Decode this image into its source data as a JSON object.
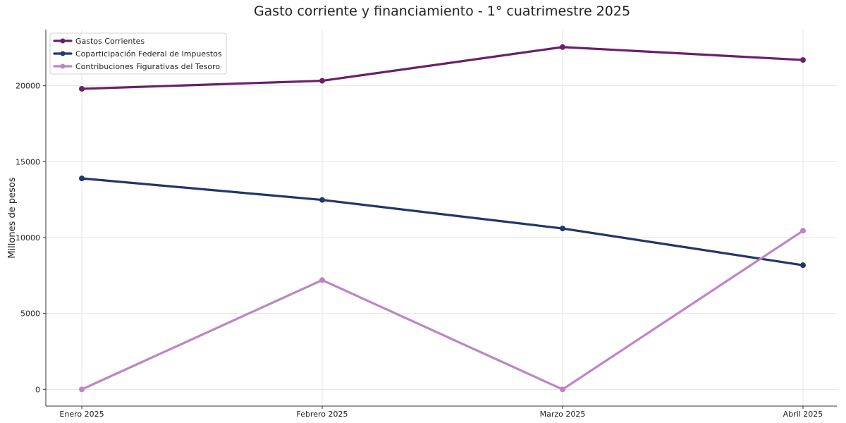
{
  "chart_data": {
    "type": "line",
    "title": "Gasto corriente y financiamiento - 1° cuatrimestre 2025",
    "xlabel": "",
    "ylabel": "Millones de pesos",
    "categories": [
      "Enero 2025",
      "Febrero 2025",
      "Marzo 2025",
      "Abril 2025"
    ],
    "ylim": [
      -1100,
      23700
    ],
    "yticks": [
      0,
      5000,
      10000,
      15000,
      20000
    ],
    "grid": true,
    "legend_position": "top-left",
    "series": [
      {
        "name": "Gastos Corrientes",
        "color": "#6b1f6b",
        "values": [
          19800,
          20330,
          22550,
          21700
        ]
      },
      {
        "name": "Coparticipación Federal de Impuestos",
        "color": "#213766",
        "values": [
          13900,
          12480,
          10600,
          8180
        ]
      },
      {
        "name": "Contribuciones Figurativas del Tesoro",
        "color": "#bf84c6",
        "values": [
          0,
          7200,
          0,
          10450
        ]
      }
    ]
  }
}
